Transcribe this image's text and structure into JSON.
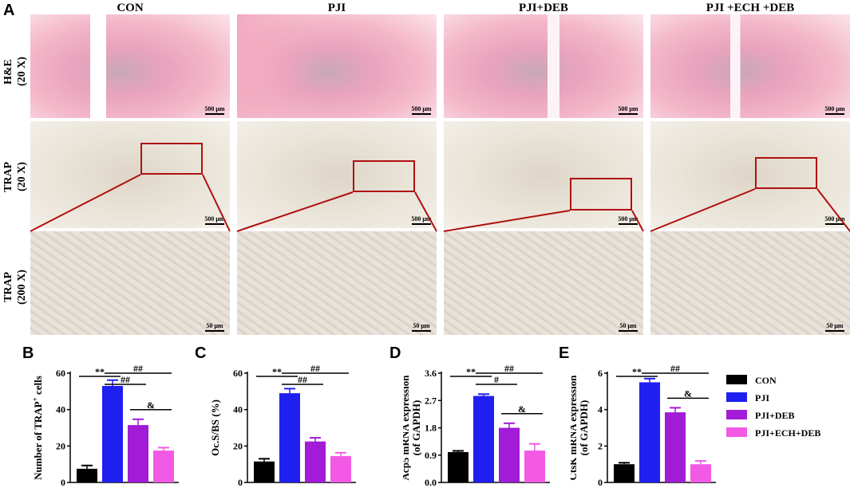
{
  "panel_letters": {
    "A": "A",
    "B": "B",
    "C": "C",
    "D": "D",
    "E": "E"
  },
  "columns": [
    "CON",
    "PJI",
    "PJI+DEB",
    "PJI +ECH +DEB"
  ],
  "rows": [
    {
      "line1": "H&E",
      "line2": "(20 X)"
    },
    {
      "line1": "TRAP",
      "line2": "(20 X)"
    },
    {
      "line1": "TRAP",
      "line2": "(200 X)"
    }
  ],
  "scalebars": {
    "low": "500 μm",
    "high": "50 μm"
  },
  "colors": {
    "CON": "#000000",
    "PJI": "#1f1ff0",
    "PJI+DEB": "#a21bd6",
    "PJI+ECH+DEB": "#f25ae6",
    "roi": "#b01010"
  },
  "legend": [
    "CON",
    "PJI",
    "PJI+DEB",
    "PJI+ECH+DEB"
  ],
  "chart_data": [
    {
      "type": "bar",
      "panel": "B",
      "ylabel": "Number of TRAP+ cells",
      "categories": [
        "CON",
        "PJI",
        "PJI+DEB",
        "PJI+ECH+DEB"
      ],
      "values": [
        7.5,
        53,
        31.5,
        17.5
      ],
      "errors": [
        1.8,
        3.2,
        3.2,
        1.6
      ],
      "ylim": [
        0,
        60
      ],
      "yticks": [
        0,
        20,
        40,
        60
      ],
      "tick_labels": [
        "0",
        "20",
        "40",
        "60"
      ],
      "annotations": [
        {
          "from": 0,
          "to": 1,
          "text": "**"
        },
        {
          "from": 1,
          "to": 2,
          "text": "##"
        },
        {
          "from": 1,
          "to": 3,
          "text": "##"
        },
        {
          "from": 2,
          "to": 3,
          "text": "&"
        }
      ]
    },
    {
      "type": "bar",
      "panel": "C",
      "ylabel": "Oc.S/BS (%)",
      "categories": [
        "CON",
        "PJI",
        "PJI+DEB",
        "PJI+ECH+DEB"
      ],
      "values": [
        11.5,
        49,
        22.5,
        14.5
      ],
      "errors": [
        1.5,
        2.5,
        2,
        1.8
      ],
      "ylim": [
        0,
        60
      ],
      "yticks": [
        0,
        20,
        40,
        60
      ],
      "tick_labels": [
        "0",
        "20",
        "40",
        "60"
      ],
      "annotations": [
        {
          "from": 0,
          "to": 1,
          "text": "**"
        },
        {
          "from": 1,
          "to": 2,
          "text": "##"
        },
        {
          "from": 1,
          "to": 3,
          "text": "##"
        }
      ]
    },
    {
      "type": "bar",
      "panel": "D",
      "ylabel": "Acp5 mRNA expression (of GAPDH)",
      "categories": [
        "CON",
        "PJI",
        "PJI+DEB",
        "PJI+ECH+DEB"
      ],
      "values": [
        1.0,
        2.85,
        1.8,
        1.05
      ],
      "errors": [
        0.04,
        0.06,
        0.15,
        0.22
      ],
      "ylim": [
        0,
        3.6
      ],
      "yticks": [
        0,
        0.9,
        1.8,
        2.7,
        3.6
      ],
      "tick_labels": [
        "0.0",
        "0.9",
        "1.8",
        "2.7",
        "3.6"
      ],
      "annotations": [
        {
          "from": 0,
          "to": 1,
          "text": "**"
        },
        {
          "from": 1,
          "to": 2,
          "text": "#"
        },
        {
          "from": 1,
          "to": 3,
          "text": "##"
        },
        {
          "from": 2,
          "to": 3,
          "text": "&"
        }
      ]
    },
    {
      "type": "bar",
      "panel": "E",
      "ylabel": "CtsK mRNA expression (of GAPDH)",
      "categories": [
        "CON",
        "PJI",
        "PJI+DEB",
        "PJI+ECH+DEB"
      ],
      "values": [
        1.0,
        5.5,
        3.85,
        1.0
      ],
      "errors": [
        0.08,
        0.2,
        0.25,
        0.18
      ],
      "ylim": [
        0,
        6
      ],
      "yticks": [
        0,
        2,
        4,
        6
      ],
      "tick_labels": [
        "0",
        "2",
        "4",
        "6"
      ],
      "annotations": [
        {
          "from": 0,
          "to": 1,
          "text": "**"
        },
        {
          "from": 1,
          "to": 3,
          "text": "##"
        },
        {
          "from": 2,
          "to": 3,
          "text": "&"
        }
      ]
    }
  ]
}
